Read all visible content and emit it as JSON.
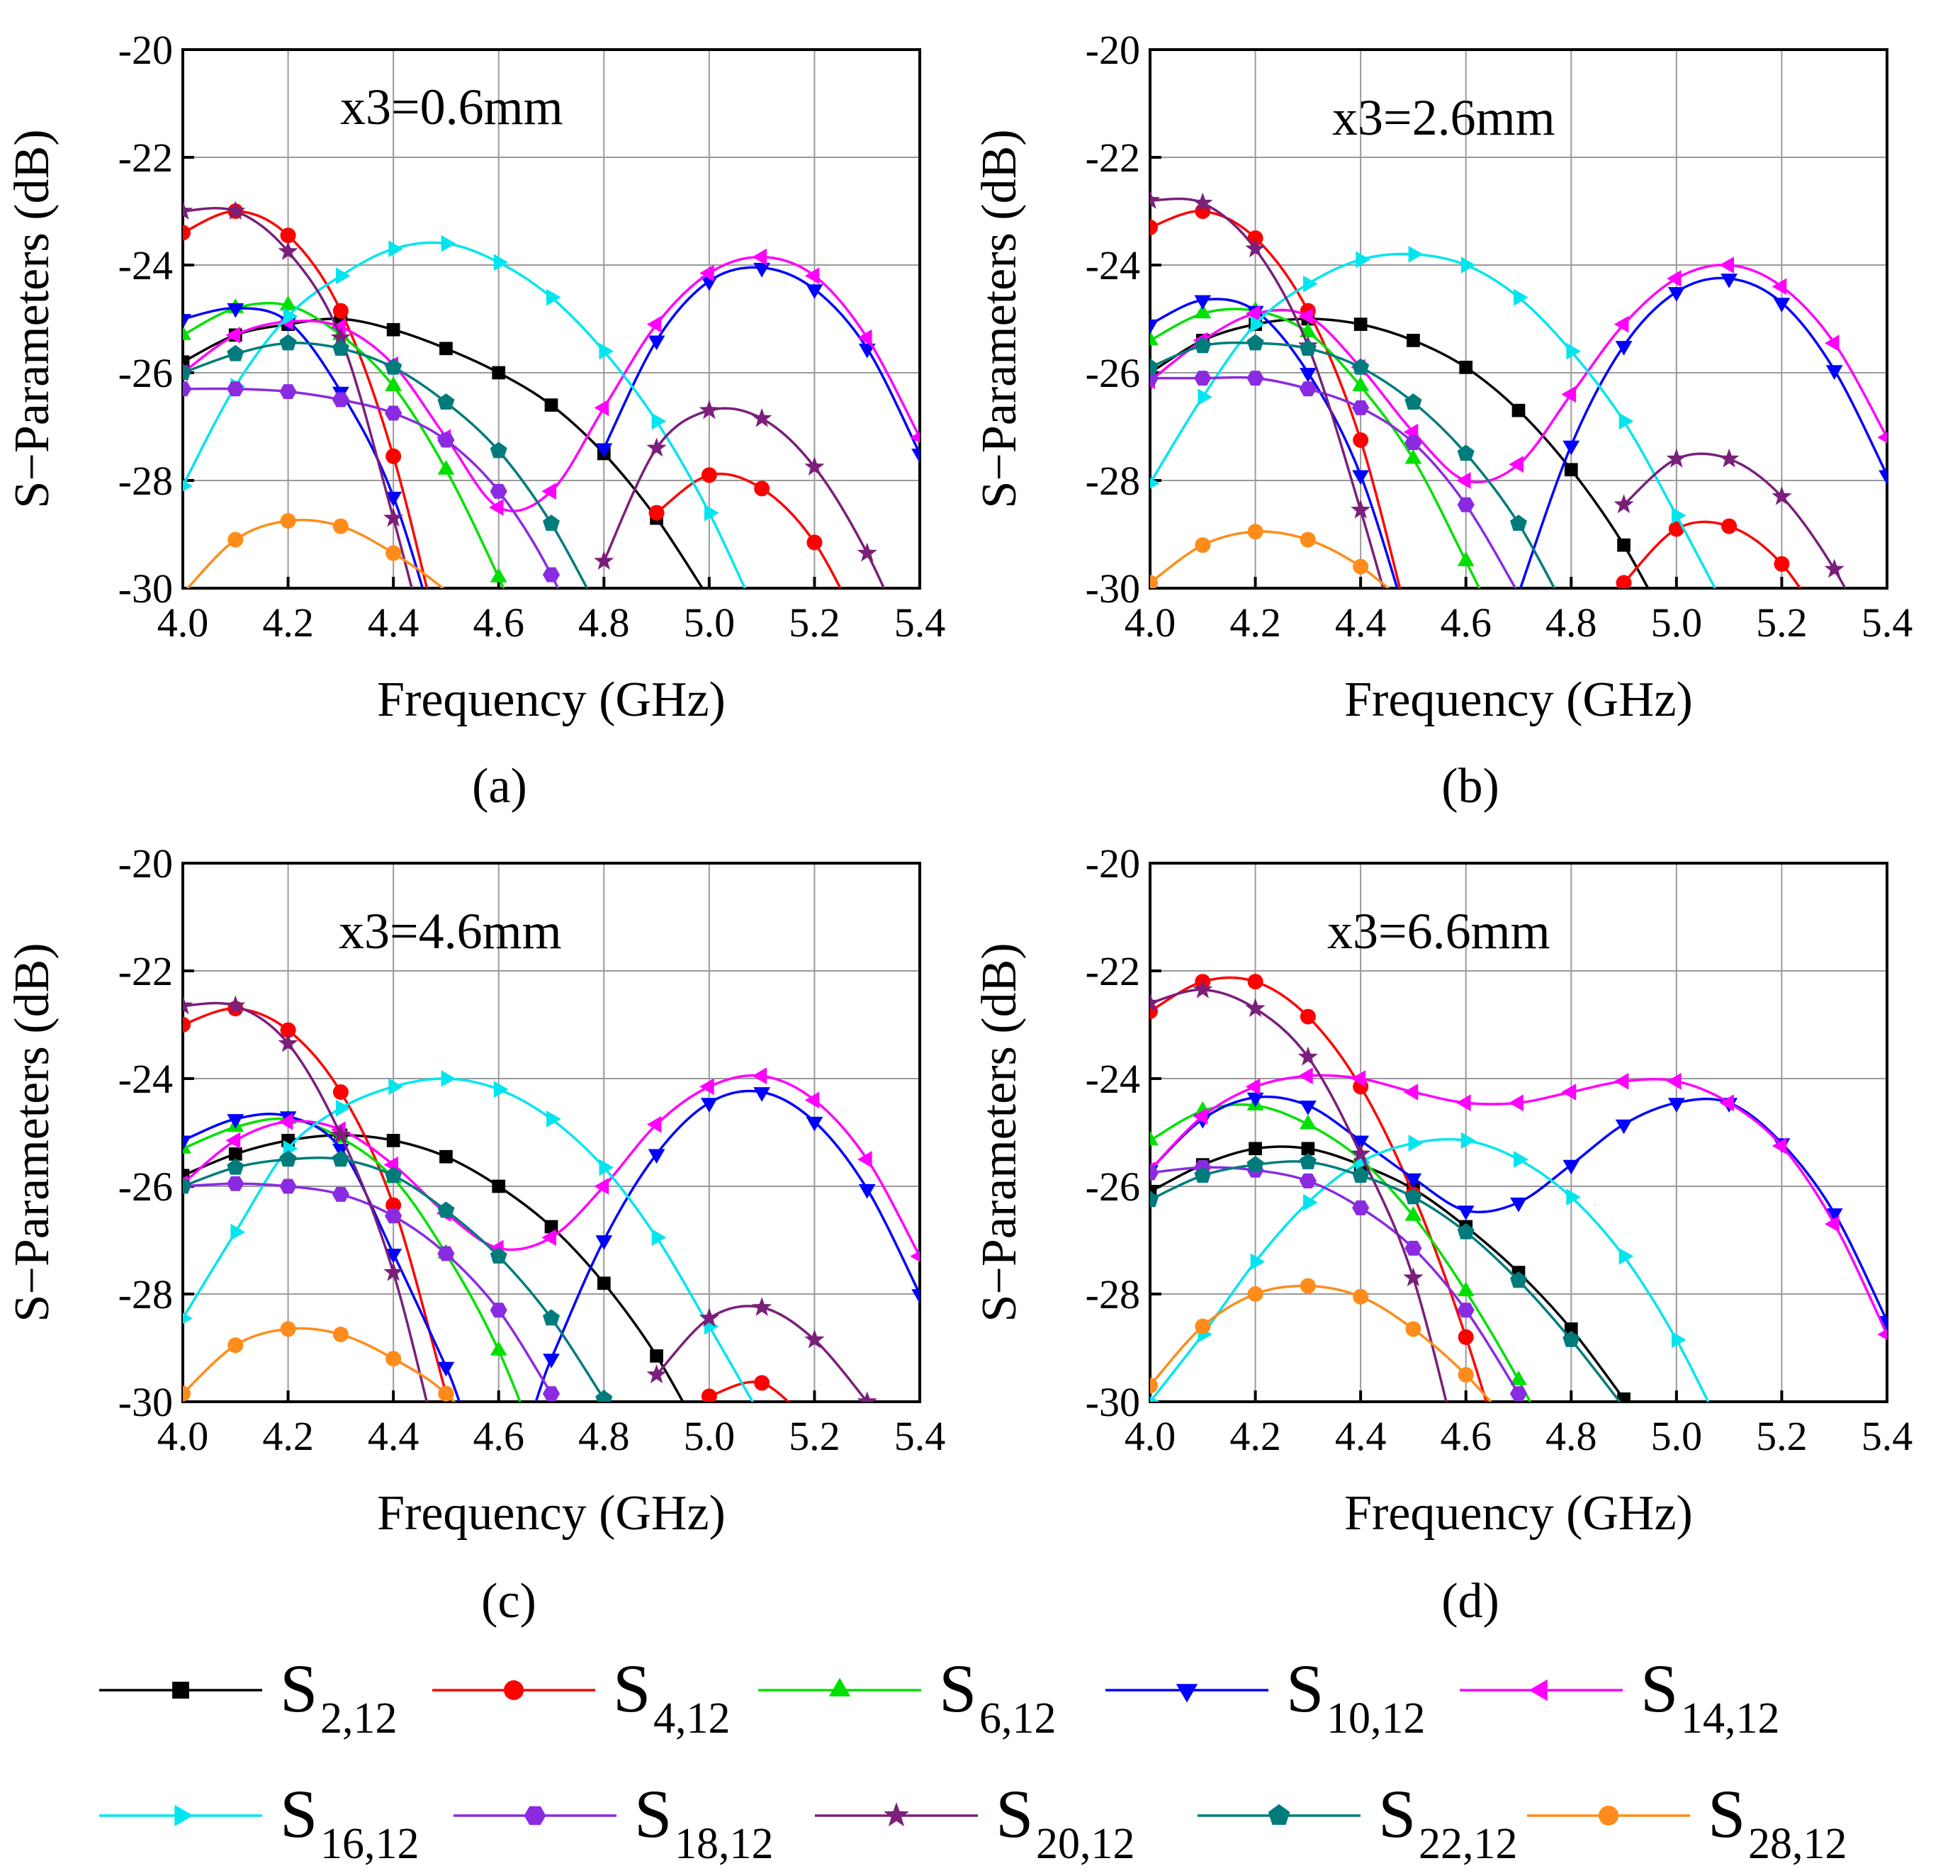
{
  "figure": {
    "legend_title": ""
  },
  "chart_data": [
    {
      "type": "line",
      "panel_caption": "(a)",
      "annotation": "x3=0.6mm",
      "xlabel": "Frequency (GHz)",
      "ylabel": "S−Parameters (dB)",
      "xlim": [
        4.0,
        5.4
      ],
      "ylim": [
        -30,
        -20
      ],
      "xticks": [
        "4.0",
        "4.2",
        "4.4",
        "4.6",
        "4.8",
        "5.0",
        "5.2",
        "5.4"
      ],
      "yticks": [
        "-20",
        "-22",
        "-24",
        "-26",
        "-28",
        "-30"
      ],
      "grid": true,
      "x": [
        4.0,
        4.1,
        4.2,
        4.3,
        4.4,
        4.5,
        4.6,
        4.7,
        4.8,
        4.9,
        5.0,
        5.1,
        5.2,
        5.3,
        5.4
      ],
      "series": [
        {
          "name": "S2,12",
          "values": [
            -25.8,
            -25.3,
            -25.1,
            -25.0,
            -25.2,
            -25.55,
            -26.0,
            -26.6,
            -27.5,
            -28.7,
            -30.2,
            null,
            null,
            null,
            null
          ]
        },
        {
          "name": "S4,12",
          "values": [
            -23.4,
            -23.0,
            -23.45,
            -24.85,
            -27.55,
            -31.5,
            null,
            null,
            null,
            -28.6,
            -27.9,
            -28.15,
            -29.15,
            -31.0,
            null
          ]
        },
        {
          "name": "S6,12",
          "values": [
            -25.3,
            -24.8,
            -24.75,
            -25.3,
            -26.25,
            -27.8,
            -29.8,
            -32.0,
            null,
            null,
            null,
            null,
            null,
            null,
            null
          ]
        },
        {
          "name": "S10,12",
          "values": [
            -25.0,
            -24.8,
            -25.05,
            -26.35,
            -28.3,
            -31.5,
            null,
            null,
            -27.4,
            -25.4,
            -24.3,
            -24.05,
            -24.45,
            -25.55,
            -27.5
          ]
        },
        {
          "name": "S14,12",
          "values": [
            -26.0,
            -25.3,
            -25.05,
            -25.15,
            -25.85,
            -27.2,
            -28.5,
            -28.2,
            -26.65,
            -25.1,
            -24.15,
            -23.85,
            -24.2,
            -25.35,
            -27.2
          ]
        },
        {
          "name": "S16,12",
          "values": [
            -28.1,
            -26.25,
            -24.95,
            -24.2,
            -23.7,
            -23.6,
            -23.95,
            -24.6,
            -25.6,
            -26.9,
            -28.6,
            -30.7,
            null,
            null,
            null
          ]
        },
        {
          "name": "S18,12",
          "values": [
            -26.3,
            -26.3,
            -26.35,
            -26.5,
            -26.75,
            -27.25,
            -28.2,
            -29.75,
            -32.0,
            null,
            null,
            null,
            null,
            null,
            null
          ]
        },
        {
          "name": "S20,12",
          "values": [
            -23.0,
            -23.0,
            -23.75,
            -25.35,
            -28.7,
            -32.5,
            null,
            null,
            -29.5,
            -27.4,
            -26.7,
            -26.85,
            -27.75,
            -29.35,
            -31.5
          ]
        },
        {
          "name": "S22,12",
          "values": [
            -26.0,
            -25.65,
            -25.45,
            -25.55,
            -25.9,
            -26.55,
            -27.45,
            -28.8,
            -30.6,
            null,
            null,
            null,
            null,
            null,
            null
          ]
        },
        {
          "name": "S28,12",
          "values": [
            -30.1,
            -29.1,
            -28.75,
            -28.85,
            -29.35,
            -30.05,
            -31.0,
            null,
            null,
            null,
            null,
            null,
            null,
            null,
            null
          ]
        }
      ]
    },
    {
      "type": "line",
      "panel_caption": "(b)",
      "annotation": "x3=2.6mm",
      "xlabel": "Frequency (GHz)",
      "ylabel": "S−Parameters (dB)",
      "xlim": [
        4.0,
        5.4
      ],
      "ylim": [
        -30,
        -20
      ],
      "xticks": [
        "4.0",
        "4.2",
        "4.4",
        "4.6",
        "4.8",
        "5.0",
        "5.2",
        "5.4"
      ],
      "yticks": [
        "-20",
        "-22",
        "-24",
        "-26",
        "-28",
        "-30"
      ],
      "grid": true,
      "x": [
        4.0,
        4.1,
        4.2,
        4.3,
        4.4,
        4.5,
        4.6,
        4.7,
        4.8,
        4.9,
        5.0,
        5.1,
        5.2,
        5.3,
        5.4
      ],
      "series": [
        {
          "name": "S2,12",
          "values": [
            -26.0,
            -25.4,
            -25.1,
            -25.0,
            -25.1,
            -25.4,
            -25.9,
            -26.7,
            -27.8,
            -29.2,
            -31.0,
            null,
            null,
            null,
            null
          ]
        },
        {
          "name": "S4,12",
          "values": [
            -23.3,
            -23.0,
            -23.5,
            -24.85,
            -27.25,
            -31.0,
            null,
            null,
            null,
            -29.9,
            -28.9,
            -28.85,
            -29.55,
            -31.0,
            null
          ]
        },
        {
          "name": "S6,12",
          "values": [
            -25.4,
            -24.9,
            -24.85,
            -25.25,
            -26.25,
            -27.6,
            -29.5,
            -31.5,
            null,
            null,
            null,
            null,
            null,
            null,
            null
          ]
        },
        {
          "name": "S10,12",
          "values": [
            -25.1,
            -24.65,
            -24.85,
            -26.0,
            -27.9,
            -31.0,
            null,
            -30.1,
            -27.35,
            -25.5,
            -24.5,
            -24.25,
            -24.7,
            -25.95,
            -27.9
          ]
        },
        {
          "name": "S14,12",
          "values": [
            -26.15,
            -25.4,
            -24.9,
            -24.95,
            -25.9,
            -27.1,
            -28.0,
            -27.7,
            -26.4,
            -25.1,
            -24.25,
            -24.0,
            -24.4,
            -25.45,
            -27.2
          ]
        },
        {
          "name": "S16,12",
          "values": [
            -28.05,
            -26.45,
            -25.1,
            -24.35,
            -23.9,
            -23.8,
            -24.0,
            -24.6,
            -25.6,
            -26.9,
            -28.65,
            -30.5,
            null,
            null,
            null
          ]
        },
        {
          "name": "S18,12",
          "values": [
            -26.1,
            -26.1,
            -26.1,
            -26.3,
            -26.65,
            -27.3,
            -28.45,
            -30.1,
            null,
            null,
            null,
            null,
            null,
            null,
            null
          ]
        },
        {
          "name": "S20,12",
          "values": [
            -22.8,
            -22.85,
            -23.7,
            -25.5,
            -28.55,
            -32.0,
            null,
            null,
            null,
            -28.45,
            -27.6,
            -27.6,
            -28.3,
            -29.65,
            -31.5
          ]
        },
        {
          "name": "S22,12",
          "values": [
            -25.9,
            -25.5,
            -25.45,
            -25.55,
            -25.9,
            -26.55,
            -27.5,
            -28.8,
            -30.6,
            null,
            null,
            null,
            null,
            null,
            null
          ]
        },
        {
          "name": "S28,12",
          "values": [
            -29.9,
            -29.2,
            -28.95,
            -29.1,
            -29.6,
            -30.4,
            null,
            null,
            null,
            null,
            null,
            null,
            null,
            null,
            null
          ]
        }
      ]
    },
    {
      "type": "line",
      "panel_caption": "(c)",
      "annotation": "x3=4.6mm",
      "xlabel": "Frequency (GHz)",
      "ylabel": "S−Parameters (dB)",
      "xlim": [
        4.0,
        5.4
      ],
      "ylim": [
        -30,
        -20
      ],
      "xticks": [
        "4.0",
        "4.2",
        "4.4",
        "4.6",
        "4.8",
        "5.0",
        "5.2",
        "5.4"
      ],
      "yticks": [
        "-20",
        "-22",
        "-24",
        "-26",
        "-28",
        "-30"
      ],
      "grid": true,
      "x": [
        4.0,
        4.1,
        4.2,
        4.3,
        4.4,
        4.5,
        4.6,
        4.7,
        4.8,
        4.9,
        5.0,
        5.1,
        5.2,
        5.3,
        5.4
      ],
      "series": [
        {
          "name": "S2,12",
          "values": [
            -25.8,
            -25.4,
            -25.15,
            -25.05,
            -25.15,
            -25.45,
            -26.0,
            -26.75,
            -27.8,
            -29.15,
            -30.9,
            null,
            null,
            null,
            null
          ]
        },
        {
          "name": "S4,12",
          "values": [
            -23.0,
            -22.7,
            -23.1,
            -24.25,
            -26.35,
            -29.85,
            null,
            null,
            null,
            null,
            -29.9,
            -29.65,
            -30.5,
            null,
            null
          ]
        },
        {
          "name": "S6,12",
          "values": [
            -25.3,
            -24.9,
            -24.75,
            -25.1,
            -25.85,
            -27.25,
            -29.05,
            -31.5,
            null,
            null,
            null,
            null,
            null,
            null,
            null
          ]
        },
        {
          "name": "S10,12",
          "values": [
            -25.15,
            -24.75,
            -24.7,
            -25.3,
            -27.25,
            -29.35,
            -31.5,
            -29.2,
            -27.0,
            -25.4,
            -24.45,
            -24.25,
            -24.8,
            -26.05,
            -28.0
          ]
        },
        {
          "name": "S14,12",
          "values": [
            -25.95,
            -25.15,
            -24.8,
            -24.95,
            -25.6,
            -26.5,
            -27.15,
            -26.95,
            -26.0,
            -24.85,
            -24.15,
            -23.95,
            -24.4,
            -25.5,
            -27.3
          ]
        },
        {
          "name": "S16,12",
          "values": [
            -28.45,
            -26.85,
            -25.3,
            -24.55,
            -24.15,
            -24.0,
            -24.2,
            -24.75,
            -25.65,
            -26.95,
            -28.6,
            -30.3,
            null,
            null,
            null
          ]
        },
        {
          "name": "S18,12",
          "values": [
            -26.0,
            -25.95,
            -26.0,
            -26.15,
            -26.55,
            -27.25,
            -28.3,
            -29.85,
            null,
            null,
            null,
            null,
            null,
            null,
            null
          ]
        },
        {
          "name": "S20,12",
          "values": [
            -22.65,
            -22.65,
            -23.35,
            -25.05,
            -27.6,
            -31.5,
            null,
            null,
            null,
            -29.5,
            -28.45,
            -28.25,
            -28.85,
            -30.0,
            null
          ]
        },
        {
          "name": "S22,12",
          "values": [
            -26.0,
            -25.65,
            -25.5,
            -25.5,
            -25.8,
            -26.45,
            -27.3,
            -28.45,
            -29.95,
            null,
            null,
            null,
            null,
            null,
            null
          ]
        },
        {
          "name": "S28,12",
          "values": [
            -29.85,
            -28.95,
            -28.65,
            -28.75,
            -29.2,
            -29.85,
            -31.0,
            null,
            null,
            null,
            null,
            null,
            null,
            null,
            null
          ]
        }
      ]
    },
    {
      "type": "line",
      "panel_caption": "(d)",
      "annotation": "x3=6.6mm",
      "xlabel": "Frequency (GHz)",
      "ylabel": "S−Parameters (dB)",
      "xlim": [
        4.0,
        5.4
      ],
      "ylim": [
        -30,
        -20
      ],
      "xticks": [
        "4.0",
        "4.2",
        "4.4",
        "4.6",
        "4.8",
        "5.0",
        "5.2",
        "5.4"
      ],
      "yticks": [
        "-20",
        "-22",
        "-24",
        "-26",
        "-28",
        "-30"
      ],
      "grid": true,
      "x": [
        4.0,
        4.1,
        4.2,
        4.3,
        4.4,
        4.5,
        4.6,
        4.7,
        4.8,
        4.9,
        5.0,
        5.1,
        5.2,
        5.3,
        5.4
      ],
      "series": [
        {
          "name": "S2,12",
          "values": [
            -26.1,
            -25.6,
            -25.3,
            -25.3,
            -25.6,
            -26.05,
            -26.75,
            -27.6,
            -28.65,
            -29.95,
            null,
            null,
            null,
            null,
            null
          ]
        },
        {
          "name": "S4,12",
          "values": [
            -22.75,
            -22.2,
            -22.2,
            -22.85,
            -24.15,
            -26.15,
            -28.8,
            -32.0,
            null,
            null,
            null,
            null,
            null,
            null,
            null
          ]
        },
        {
          "name": "S6,12",
          "values": [
            -25.15,
            -24.6,
            -24.5,
            -24.85,
            -25.5,
            -26.55,
            -27.95,
            -29.6,
            -31.5,
            null,
            null,
            null,
            null,
            null,
            null
          ]
        },
        {
          "name": "S10,12",
          "values": [
            -25.7,
            -24.75,
            -24.35,
            -24.5,
            -25.15,
            -25.85,
            -26.45,
            -26.3,
            -25.6,
            -24.85,
            -24.45,
            -24.45,
            -25.2,
            -26.5,
            -28.5
          ]
        },
        {
          "name": "S14,12",
          "values": [
            -25.7,
            -24.7,
            -24.15,
            -23.95,
            -24.0,
            -24.25,
            -24.45,
            -24.45,
            -24.25,
            -24.05,
            -24.05,
            -24.45,
            -25.25,
            -26.7,
            -28.75
          ]
        },
        {
          "name": "S16,12",
          "values": [
            -30.0,
            -28.75,
            -27.4,
            -26.3,
            -25.55,
            -25.2,
            -25.15,
            -25.5,
            -26.2,
            -27.3,
            -28.85,
            -30.8,
            null,
            null,
            null
          ]
        },
        {
          "name": "S18,12",
          "values": [
            -25.75,
            -25.65,
            -25.7,
            -25.9,
            -26.4,
            -27.15,
            -28.3,
            -29.85,
            null,
            null,
            null,
            null,
            null,
            null,
            null
          ]
        },
        {
          "name": "S20,12",
          "values": [
            -22.6,
            -22.35,
            -22.7,
            -23.6,
            -25.4,
            -27.7,
            -31.5,
            null,
            null,
            null,
            null,
            null,
            null,
            null,
            null
          ]
        },
        {
          "name": "S22,12",
          "values": [
            -26.25,
            -25.8,
            -25.6,
            -25.55,
            -25.8,
            -26.2,
            -26.85,
            -27.75,
            -28.85,
            -30.1,
            null,
            null,
            null,
            null,
            null
          ]
        },
        {
          "name": "S28,12",
          "values": [
            -29.7,
            -28.6,
            -28.0,
            -27.85,
            -28.05,
            -28.65,
            -29.5,
            -30.6,
            null,
            null,
            null,
            null,
            null,
            null,
            null
          ]
        }
      ]
    }
  ],
  "legend": [
    {
      "base": "S",
      "sub": "2,12",
      "color": "#000000",
      "marker": "square"
    },
    {
      "base": "S",
      "sub": "4,12",
      "color": "#ff0000",
      "marker": "circle"
    },
    {
      "base": "S",
      "sub": "6,12",
      "color": "#00e000",
      "marker": "triangle-up"
    },
    {
      "base": "S",
      "sub": "10,12",
      "color": "#0000ff",
      "marker": "triangle-down"
    },
    {
      "base": "S",
      "sub": "14,12",
      "color": "#ff00ff",
      "marker": "triangle-left"
    },
    {
      "base": "S",
      "sub": "16,12",
      "color": "#00e5ee",
      "marker": "triangle-right"
    },
    {
      "base": "S",
      "sub": "18,12",
      "color": "#8a2be2",
      "marker": "hexagon"
    },
    {
      "base": "S",
      "sub": "20,12",
      "color": "#7a1f7a",
      "marker": "star"
    },
    {
      "base": "S",
      "sub": "22,12",
      "color": "#007b7b",
      "marker": "pentagon"
    },
    {
      "base": "S",
      "sub": "28,12",
      "color": "#ff8c1a",
      "marker": "circle"
    }
  ]
}
